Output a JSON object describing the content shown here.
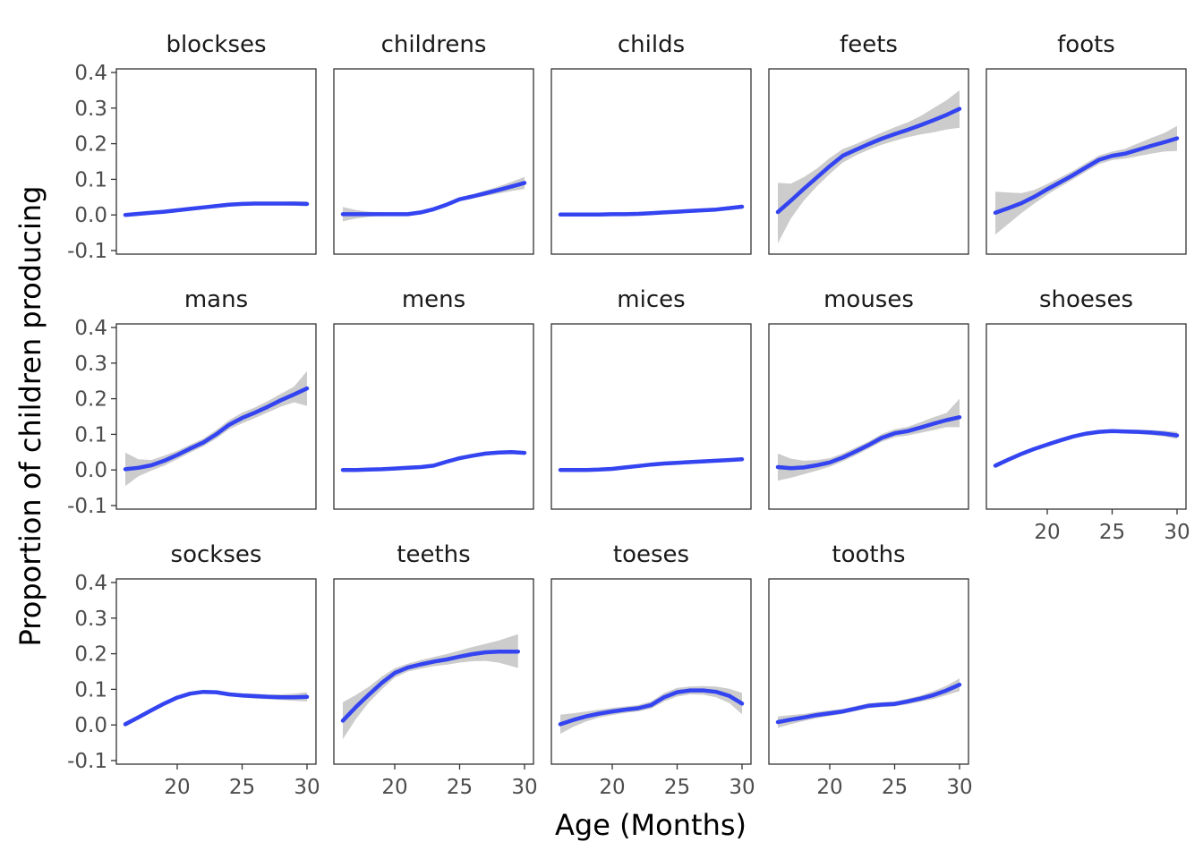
{
  "chart_data": {
    "type": "line",
    "title": "",
    "xlabel": "Age (Months)",
    "ylabel": "Proportion of children producing",
    "xlim": [
      16,
      30
    ],
    "ylim": [
      -0.1,
      0.4
    ],
    "x_ticks": [
      20,
      25,
      30
    ],
    "x_tick_labels": [
      "20",
      "25",
      "30"
    ],
    "y_ticks": [
      -0.1,
      0.0,
      0.1,
      0.2,
      0.3,
      0.4
    ],
    "y_tick_labels": [
      "-0.1",
      "0.0",
      "0.1",
      "0.2",
      "0.3",
      "0.4"
    ],
    "grid": false,
    "facets": {
      "rows": 3,
      "cols": 5
    },
    "line_color": "#3344f0",
    "band_color": "#cccccc",
    "x": [
      16,
      17,
      18,
      19,
      20,
      21,
      22,
      23,
      24,
      25,
      26,
      27,
      28,
      29,
      30
    ],
    "series": [
      {
        "name": "blockses",
        "values": [
          0.0,
          0.003,
          0.006,
          0.009,
          0.013,
          0.017,
          0.021,
          0.025,
          0.029,
          0.031,
          0.032,
          0.032,
          0.032,
          0.032,
          0.031
        ],
        "lower": [
          -0.004,
          -0.001,
          0.002,
          0.005,
          0.009,
          0.013,
          0.017,
          0.021,
          0.025,
          0.027,
          0.028,
          0.028,
          0.027,
          0.026,
          0.024
        ],
        "upper": [
          0.004,
          0.007,
          0.01,
          0.013,
          0.017,
          0.021,
          0.025,
          0.029,
          0.033,
          0.035,
          0.036,
          0.036,
          0.037,
          0.038,
          0.038
        ]
      },
      {
        "name": "childrens",
        "values": [
          0.002,
          0.002,
          0.002,
          0.002,
          0.002,
          0.002,
          0.007,
          0.016,
          0.029,
          0.044,
          0.052,
          0.061,
          0.07,
          0.08,
          0.09
        ],
        "lower": [
          -0.018,
          -0.01,
          -0.005,
          -0.003,
          -0.002,
          -0.002,
          0.002,
          0.011,
          0.024,
          0.039,
          0.046,
          0.053,
          0.06,
          0.067,
          0.073
        ],
        "upper": [
          0.022,
          0.014,
          0.009,
          0.007,
          0.006,
          0.006,
          0.012,
          0.021,
          0.034,
          0.049,
          0.058,
          0.069,
          0.08,
          0.093,
          0.107
        ]
      },
      {
        "name": "childs",
        "values": [
          0.001,
          0.001,
          0.001,
          0.001,
          0.002,
          0.002,
          0.003,
          0.005,
          0.007,
          0.009,
          0.011,
          0.013,
          0.015,
          0.019,
          0.023
        ],
        "lower": [
          -0.002,
          -0.002,
          -0.002,
          -0.002,
          -0.001,
          -0.001,
          0.0,
          0.002,
          0.004,
          0.006,
          0.008,
          0.009,
          0.011,
          0.014,
          0.017
        ],
        "upper": [
          0.004,
          0.004,
          0.004,
          0.004,
          0.005,
          0.005,
          0.006,
          0.008,
          0.01,
          0.012,
          0.014,
          0.017,
          0.019,
          0.024,
          0.029
        ]
      },
      {
        "name": "feets",
        "values": [
          0.008,
          0.04,
          0.073,
          0.105,
          0.137,
          0.166,
          0.183,
          0.199,
          0.214,
          0.227,
          0.239,
          0.252,
          0.266,
          0.281,
          0.298
        ],
        "lower": [
          -0.08,
          -0.01,
          0.04,
          0.08,
          0.115,
          0.147,
          0.167,
          0.183,
          0.197,
          0.208,
          0.218,
          0.226,
          0.232,
          0.24,
          0.245
        ],
        "upper": [
          0.09,
          0.088,
          0.106,
          0.13,
          0.16,
          0.185,
          0.199,
          0.215,
          0.231,
          0.246,
          0.26,
          0.278,
          0.3,
          0.322,
          0.35
        ]
      },
      {
        "name": "foots",
        "values": [
          0.006,
          0.019,
          0.033,
          0.051,
          0.072,
          0.092,
          0.112,
          0.134,
          0.155,
          0.166,
          0.172,
          0.183,
          0.194,
          0.204,
          0.215
        ],
        "lower": [
          -0.055,
          -0.025,
          0.005,
          0.032,
          0.057,
          0.079,
          0.1,
          0.122,
          0.143,
          0.154,
          0.158,
          0.165,
          0.172,
          0.178,
          0.18
        ],
        "upper": [
          0.065,
          0.063,
          0.061,
          0.07,
          0.087,
          0.105,
          0.124,
          0.146,
          0.167,
          0.178,
          0.186,
          0.201,
          0.216,
          0.23,
          0.25
        ]
      },
      {
        "name": "mans",
        "values": [
          0.002,
          0.006,
          0.013,
          0.026,
          0.042,
          0.06,
          0.077,
          0.1,
          0.127,
          0.146,
          0.161,
          0.178,
          0.196,
          0.212,
          0.229
        ],
        "lower": [
          -0.045,
          -0.018,
          -0.002,
          0.012,
          0.03,
          0.049,
          0.066,
          0.088,
          0.114,
          0.131,
          0.146,
          0.162,
          0.178,
          0.19,
          0.18
        ],
        "upper": [
          0.049,
          0.03,
          0.028,
          0.04,
          0.054,
          0.071,
          0.088,
          0.112,
          0.14,
          0.161,
          0.176,
          0.194,
          0.214,
          0.234,
          0.278
        ]
      },
      {
        "name": "mens",
        "values": [
          0.0,
          0.0,
          0.001,
          0.002,
          0.004,
          0.006,
          0.008,
          0.012,
          0.023,
          0.033,
          0.04,
          0.046,
          0.049,
          0.05,
          0.048
        ],
        "lower": [
          -0.002,
          -0.002,
          -0.001,
          0.0,
          0.002,
          0.004,
          0.006,
          0.01,
          0.02,
          0.03,
          0.037,
          0.043,
          0.046,
          0.046,
          0.043
        ],
        "upper": [
          0.002,
          0.002,
          0.003,
          0.004,
          0.006,
          0.008,
          0.01,
          0.014,
          0.026,
          0.036,
          0.043,
          0.049,
          0.052,
          0.054,
          0.053
        ]
      },
      {
        "name": "mices",
        "values": [
          0.0,
          0.0,
          0.0,
          0.001,
          0.003,
          0.007,
          0.011,
          0.015,
          0.018,
          0.02,
          0.022,
          0.024,
          0.026,
          0.028,
          0.03
        ],
        "lower": [
          -0.003,
          -0.003,
          -0.003,
          -0.002,
          0.0,
          0.004,
          0.008,
          0.012,
          0.015,
          0.017,
          0.019,
          0.021,
          0.022,
          0.024,
          0.025
        ],
        "upper": [
          0.003,
          0.003,
          0.003,
          0.004,
          0.006,
          0.01,
          0.014,
          0.018,
          0.021,
          0.023,
          0.025,
          0.027,
          0.03,
          0.032,
          0.035
        ]
      },
      {
        "name": "mouses",
        "values": [
          0.008,
          0.005,
          0.007,
          0.013,
          0.021,
          0.035,
          0.052,
          0.07,
          0.09,
          0.103,
          0.109,
          0.119,
          0.13,
          0.14,
          0.148
        ],
        "lower": [
          -0.03,
          -0.022,
          -0.012,
          -0.002,
          0.009,
          0.024,
          0.041,
          0.06,
          0.079,
          0.092,
          0.097,
          0.104,
          0.112,
          0.12,
          0.12
        ],
        "upper": [
          0.046,
          0.032,
          0.026,
          0.028,
          0.033,
          0.046,
          0.063,
          0.08,
          0.101,
          0.114,
          0.121,
          0.134,
          0.148,
          0.16,
          0.2
        ]
      },
      {
        "name": "shoeses",
        "values": [
          0.012,
          0.029,
          0.045,
          0.059,
          0.071,
          0.083,
          0.094,
          0.102,
          0.107,
          0.109,
          0.108,
          0.107,
          0.105,
          0.102,
          0.097
        ],
        "lower": [
          0.005,
          0.023,
          0.04,
          0.055,
          0.067,
          0.079,
          0.09,
          0.098,
          0.103,
          0.104,
          0.103,
          0.101,
          0.098,
          0.094,
          0.087
        ],
        "upper": [
          0.019,
          0.035,
          0.05,
          0.063,
          0.075,
          0.087,
          0.098,
          0.106,
          0.111,
          0.114,
          0.113,
          0.113,
          0.112,
          0.11,
          0.107
        ]
      },
      {
        "name": "sockses",
        "values": [
          0.002,
          0.021,
          0.041,
          0.06,
          0.077,
          0.088,
          0.093,
          0.092,
          0.086,
          0.083,
          0.081,
          0.079,
          0.078,
          0.078,
          0.079
        ],
        "lower": [
          -0.005,
          0.015,
          0.036,
          0.055,
          0.072,
          0.083,
          0.088,
          0.087,
          0.081,
          0.077,
          0.074,
          0.072,
          0.07,
          0.068,
          0.066
        ],
        "upper": [
          0.009,
          0.027,
          0.046,
          0.065,
          0.082,
          0.093,
          0.098,
          0.097,
          0.091,
          0.089,
          0.088,
          0.086,
          0.086,
          0.088,
          0.092
        ]
      },
      {
        "name": "teeths",
        "values": [
          0.012,
          0.05,
          0.085,
          0.118,
          0.146,
          0.161,
          0.17,
          0.178,
          0.184,
          0.192,
          0.199,
          0.204,
          0.206,
          0.206
        ],
        "x": [
          16,
          17,
          18,
          19,
          20,
          21,
          22,
          23,
          24,
          25,
          26,
          27,
          28,
          29.5
        ],
        "lower": [
          -0.04,
          0.016,
          0.063,
          0.1,
          0.133,
          0.15,
          0.158,
          0.165,
          0.169,
          0.175,
          0.179,
          0.18,
          0.175,
          0.16
        ],
        "upper": [
          0.064,
          0.084,
          0.107,
          0.136,
          0.159,
          0.172,
          0.182,
          0.191,
          0.199,
          0.209,
          0.219,
          0.228,
          0.237,
          0.255
        ]
      },
      {
        "name": "toeses",
        "values": [
          0.002,
          0.014,
          0.024,
          0.032,
          0.038,
          0.043,
          0.047,
          0.056,
          0.078,
          0.092,
          0.097,
          0.097,
          0.093,
          0.082,
          0.06
        ],
        "lower": [
          -0.025,
          -0.005,
          0.01,
          0.021,
          0.028,
          0.034,
          0.038,
          0.046,
          0.066,
          0.08,
          0.086,
          0.085,
          0.078,
          0.062,
          0.03
        ],
        "upper": [
          0.029,
          0.033,
          0.038,
          0.043,
          0.048,
          0.052,
          0.056,
          0.066,
          0.09,
          0.104,
          0.108,
          0.109,
          0.108,
          0.102,
          0.09
        ]
      },
      {
        "name": "tooths",
        "values": [
          0.008,
          0.015,
          0.021,
          0.028,
          0.033,
          0.038,
          0.046,
          0.054,
          0.057,
          0.059,
          0.066,
          0.074,
          0.084,
          0.097,
          0.113
        ],
        "lower": [
          -0.008,
          0.002,
          0.011,
          0.019,
          0.025,
          0.031,
          0.039,
          0.047,
          0.05,
          0.052,
          0.058,
          0.065,
          0.073,
          0.084,
          0.095
        ],
        "upper": [
          0.024,
          0.028,
          0.031,
          0.037,
          0.041,
          0.045,
          0.053,
          0.061,
          0.064,
          0.066,
          0.074,
          0.083,
          0.095,
          0.11,
          0.131
        ]
      }
    ]
  }
}
